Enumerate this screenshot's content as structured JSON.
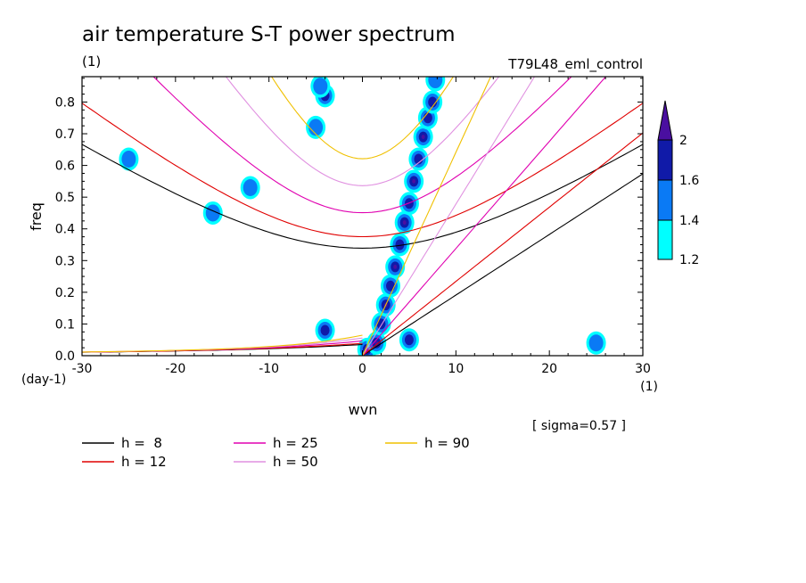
{
  "chart_data": {
    "type": "contour",
    "title": "air temperature S-T power spectrum",
    "subtitle_left": "(1)",
    "subtitle_right": "T79L48_eml_control",
    "xlabel": "wvn",
    "ylabel": "freq",
    "x_unit": "(1)",
    "y_unit": "(day-1)",
    "xlim": [
      -30,
      30
    ],
    "ylim": [
      0,
      0.88
    ],
    "x_ticks": [
      "-30",
      "-20",
      "-10",
      "0",
      "10",
      "20",
      "30"
    ],
    "y_ticks": [
      "0.0",
      "0.1",
      "0.2",
      "0.3",
      "0.4",
      "0.5",
      "0.6",
      "0.7",
      "0.8"
    ],
    "x_tick_values": [
      -30,
      -20,
      -10,
      0,
      10,
      20,
      30
    ],
    "y_tick_values": [
      0,
      0.1,
      0.2,
      0.3,
      0.4,
      0.5,
      0.6,
      0.7,
      0.8
    ],
    "annotation": "[ sigma=0.57 ]",
    "colorbar": {
      "labels": [
        "1.2",
        "1.4",
        "1.6",
        "2"
      ],
      "colors": [
        "#00ffff",
        "#0a7af5",
        "#101aa8",
        "#4a0fa0"
      ],
      "extend": "max"
    },
    "series": [
      {
        "name": "h =  8",
        "h": 8,
        "color": "#000000"
      },
      {
        "name": "h = 12",
        "h": 12,
        "color": "#e00000"
      },
      {
        "name": "h = 25",
        "h": 25,
        "color": "#e000b0"
      },
      {
        "name": "h = 50",
        "h": 50,
        "color": "#e090e0"
      },
      {
        "name": "h = 90",
        "h": 90,
        "color": "#f0c000"
      }
    ],
    "contour_blobs": [
      {
        "x": -4.0,
        "y": 0.82,
        "level": 2
      },
      {
        "x": -4.5,
        "y": 0.85,
        "level": 1
      },
      {
        "x": -5.0,
        "y": 0.72,
        "level": 1
      },
      {
        "x": 0.5,
        "y": 0.02,
        "level": 3
      },
      {
        "x": 1.5,
        "y": 0.04,
        "level": 3
      },
      {
        "x": 2.0,
        "y": 0.1,
        "level": 2
      },
      {
        "x": 2.5,
        "y": 0.16,
        "level": 3
      },
      {
        "x": 3.0,
        "y": 0.22,
        "level": 2
      },
      {
        "x": 3.5,
        "y": 0.28,
        "level": 3
      },
      {
        "x": 4.0,
        "y": 0.35,
        "level": 2
      },
      {
        "x": 4.5,
        "y": 0.42,
        "level": 3
      },
      {
        "x": 5.0,
        "y": 0.48,
        "level": 2
      },
      {
        "x": 5.5,
        "y": 0.55,
        "level": 3
      },
      {
        "x": 6.0,
        "y": 0.62,
        "level": 2
      },
      {
        "x": 6.5,
        "y": 0.69,
        "level": 3
      },
      {
        "x": 7.0,
        "y": 0.75,
        "level": 2
      },
      {
        "x": 7.5,
        "y": 0.8,
        "level": 2
      },
      {
        "x": 7.8,
        "y": 0.87,
        "level": 1
      },
      {
        "x": 5.0,
        "y": 0.05,
        "level": 2
      },
      {
        "x": -4.0,
        "y": 0.08,
        "level": 2
      },
      {
        "x": -16.0,
        "y": 0.45,
        "level": 1
      },
      {
        "x": 25.0,
        "y": 0.04,
        "level": 1
      },
      {
        "x": -25.0,
        "y": 0.62,
        "level": 1
      },
      {
        "x": -12.0,
        "y": 0.53,
        "level": 1
      }
    ]
  }
}
